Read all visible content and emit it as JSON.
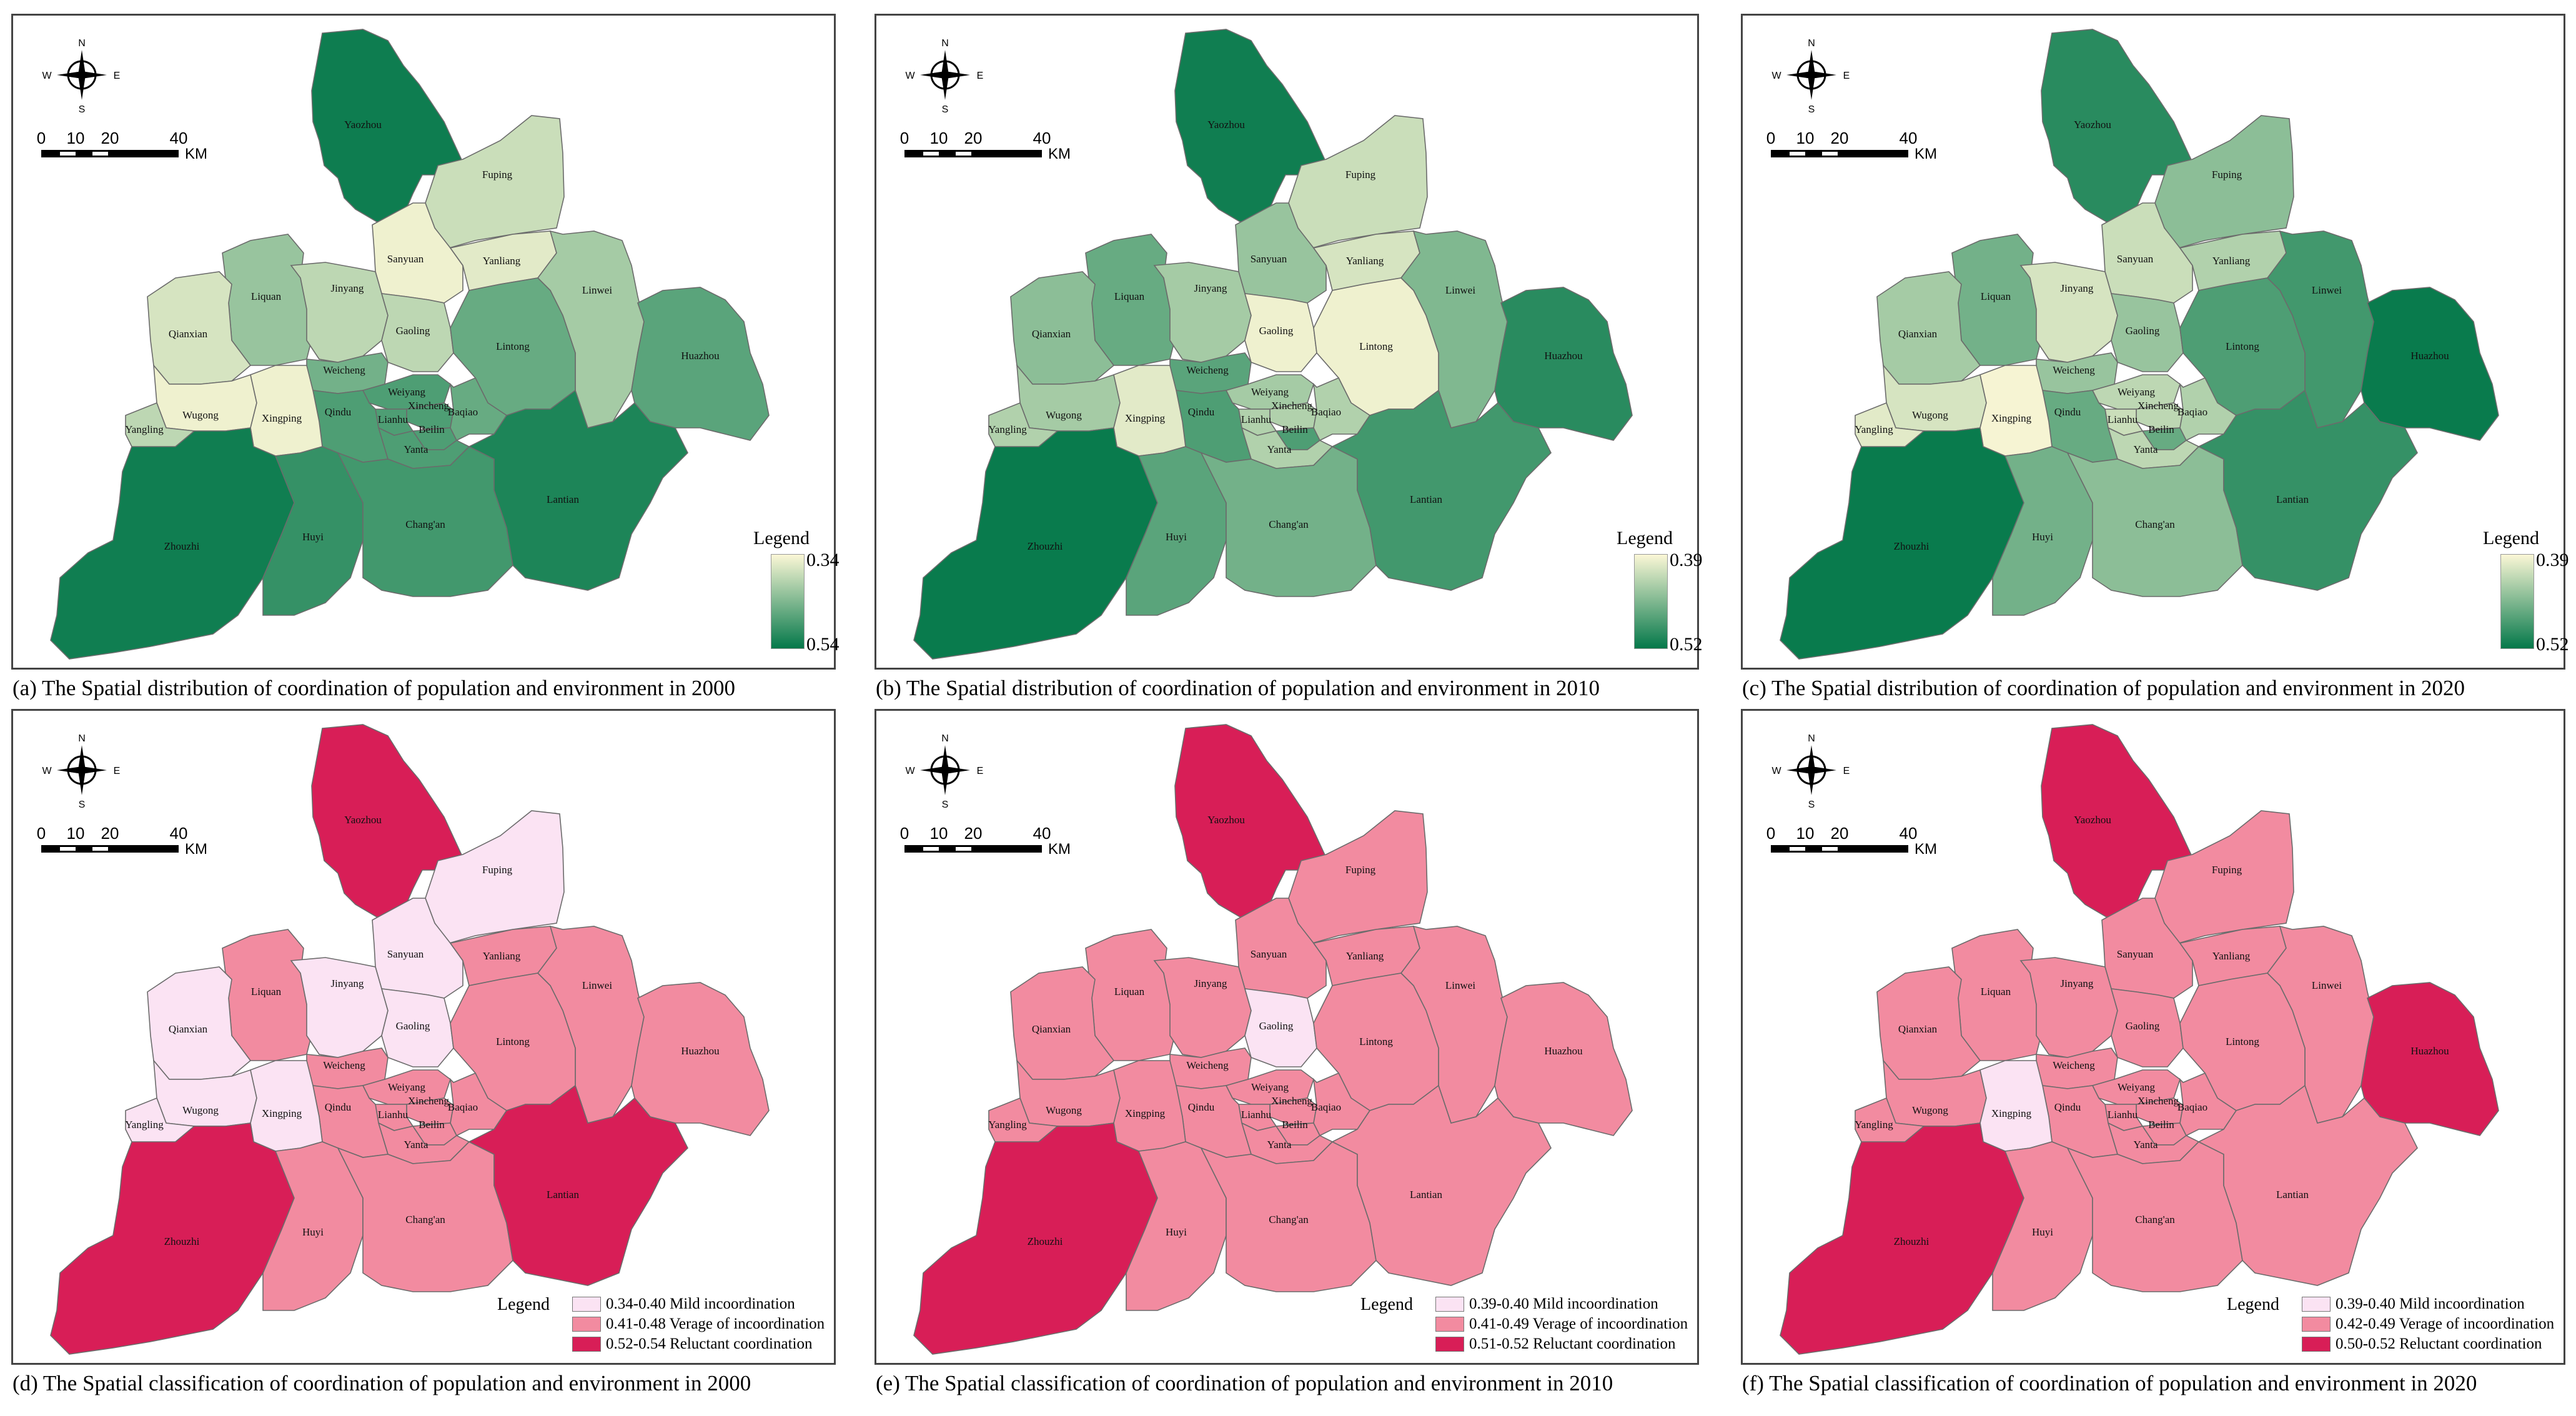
{
  "colors": {
    "pop_low": "#fbf7d6",
    "pop_high": "#04784a",
    "cls_mild": "#fbe3f3",
    "cls_average": "#f28ba0",
    "cls_reluctant": "#d81e57"
  },
  "compass": {
    "n": "N",
    "s": "S",
    "e": "E",
    "w": "W"
  },
  "scalebar": {
    "ticks": [
      "0",
      "10",
      "20",
      "40"
    ],
    "unit": "KM"
  },
  "legend_title": "Legend",
  "districts": [
    "Yaozhou",
    "Fuping",
    "Sanyuan",
    "Yanliang",
    "Liquan",
    "Jinyang",
    "Gaoling",
    "Linwei",
    "Qianxian",
    "Lintong",
    "Huazhou",
    "Weicheng",
    "Weiyang",
    "Xincheng",
    "Lianhu",
    "Beilin",
    "Baqiao",
    "Yanta",
    "Qindu",
    "Wugong",
    "Xingping",
    "Yangling",
    "Zhouzhi",
    "Huyi",
    "Chang'an",
    "Lantian"
  ],
  "panels": [
    {
      "caption": "(a) The Spatial distribution of coordination of population and environment in 2000",
      "type": "gradient",
      "legend_min": "0.34",
      "legend_max": "0.54",
      "levels": {
        "Yaozhou": 0.96,
        "Fuping": 0.2,
        "Sanyuan": 0.05,
        "Yanliang": 0.1,
        "Liquan": 0.4,
        "Jinyang": 0.25,
        "Gaoling": 0.25,
        "Linwei": 0.35,
        "Qianxian": 0.15,
        "Lintong": 0.6,
        "Huazhou": 0.65,
        "Weicheng": 0.55,
        "Weiyang": 0.7,
        "Xincheng": 0.7,
        "Lianhu": 0.7,
        "Beilin": 0.7,
        "Baqiao": 0.6,
        "Yanta": 0.7,
        "Qindu": 0.7,
        "Wugong": 0.05,
        "Xingping": 0.05,
        "Yangling": 0.25,
        "Zhouzhi": 0.95,
        "Huyi": 0.8,
        "Chang'an": 0.75,
        "Lantian": 0.9
      }
    },
    {
      "caption": "(b) The Spatial distribution of coordination of population and environment in 2010",
      "type": "gradient",
      "legend_min": "0.39",
      "legend_max": "0.52",
      "levels": {
        "Yaozhou": 0.95,
        "Fuping": 0.2,
        "Sanyuan": 0.4,
        "Yanliang": 0.15,
        "Liquan": 0.6,
        "Jinyang": 0.35,
        "Gaoling": 0.05,
        "Linwei": 0.5,
        "Qianxian": 0.45,
        "Lintong": 0.05,
        "Huazhou": 0.85,
        "Weicheng": 0.65,
        "Weiyang": 0.35,
        "Xincheng": 0.3,
        "Lianhu": 0.3,
        "Beilin": 0.7,
        "Baqiao": 0.3,
        "Yanta": 0.3,
        "Qindu": 0.7,
        "Wugong": 0.35,
        "Xingping": 0.1,
        "Yangling": 0.3,
        "Zhouzhi": 0.98,
        "Huyi": 0.65,
        "Chang'an": 0.55,
        "Lantian": 0.75
      }
    },
    {
      "caption": "(c) The Spatial distribution of coordination of population and environment in 2020",
      "type": "gradient",
      "legend_min": "0.39",
      "legend_max": "0.52",
      "levels": {
        "Yaozhou": 0.85,
        "Fuping": 0.45,
        "Sanyuan": 0.2,
        "Yanliang": 0.3,
        "Liquan": 0.55,
        "Jinyang": 0.15,
        "Gaoling": 0.4,
        "Linwei": 0.75,
        "Qianxian": 0.35,
        "Lintong": 0.7,
        "Huazhou": 0.98,
        "Weicheng": 0.4,
        "Weiyang": 0.25,
        "Xincheng": 0.25,
        "Lianhu": 0.2,
        "Beilin": 0.6,
        "Baqiao": 0.3,
        "Yanta": 0.25,
        "Qindu": 0.6,
        "Wugong": 0.15,
        "Xingping": 0.02,
        "Yangling": 0.1,
        "Zhouzhi": 0.98,
        "Huyi": 0.55,
        "Chang'an": 0.45,
        "Lantian": 0.8
      }
    },
    {
      "caption": "(d) The Spatial classification of coordination of population and environment in 2000",
      "type": "class",
      "classes": [
        "0.34-0.40 Mild incoordination",
        "0.41-0.48 Verage of incoordination",
        "0.52-0.54 Reluctant coordination"
      ],
      "levels": {
        "Yaozhou": 2,
        "Fuping": 0,
        "Sanyuan": 0,
        "Yanliang": 1,
        "Liquan": 1,
        "Jinyang": 0,
        "Gaoling": 0,
        "Linwei": 1,
        "Qianxian": 0,
        "Lintong": 1,
        "Huazhou": 1,
        "Weicheng": 1,
        "Weiyang": 1,
        "Xincheng": 1,
        "Lianhu": 1,
        "Beilin": 1,
        "Baqiao": 1,
        "Yanta": 1,
        "Qindu": 1,
        "Wugong": 0,
        "Xingping": 0,
        "Yangling": 0,
        "Zhouzhi": 2,
        "Huyi": 1,
        "Chang'an": 1,
        "Lantian": 2
      }
    },
    {
      "caption": "(e) The Spatial classification of coordination of population and environment in 2010",
      "type": "class",
      "classes": [
        "0.39-0.40 Mild incoordination",
        "0.41-0.49 Verage of incoordination",
        "0.51-0.52 Reluctant coordination"
      ],
      "levels": {
        "Yaozhou": 2,
        "Fuping": 1,
        "Sanyuan": 1,
        "Yanliang": 1,
        "Liquan": 1,
        "Jinyang": 1,
        "Gaoling": 0,
        "Linwei": 1,
        "Qianxian": 1,
        "Lintong": 1,
        "Huazhou": 1,
        "Weicheng": 1,
        "Weiyang": 1,
        "Xincheng": 1,
        "Lianhu": 1,
        "Beilin": 1,
        "Baqiao": 1,
        "Yanta": 1,
        "Qindu": 1,
        "Wugong": 1,
        "Xingping": 1,
        "Yangling": 1,
        "Zhouzhi": 2,
        "Huyi": 1,
        "Chang'an": 1,
        "Lantian": 1
      }
    },
    {
      "caption": "(f) The Spatial classification of coordination of population and environment in 2020",
      "type": "class",
      "classes": [
        "0.39-0.40 Mild incoordination",
        "0.42-0.49 Verage of incoordination",
        "0.50-0.52 Reluctant coordination"
      ],
      "levels": {
        "Yaozhou": 2,
        "Fuping": 1,
        "Sanyuan": 1,
        "Yanliang": 1,
        "Liquan": 1,
        "Jinyang": 1,
        "Gaoling": 1,
        "Linwei": 1,
        "Qianxian": 1,
        "Lintong": 1,
        "Huazhou": 2,
        "Weicheng": 1,
        "Weiyang": 1,
        "Xincheng": 1,
        "Lianhu": 1,
        "Beilin": 1,
        "Baqiao": 1,
        "Yanta": 1,
        "Qindu": 1,
        "Wugong": 1,
        "Xingping": 0,
        "Yangling": 1,
        "Zhouzhi": 2,
        "Huyi": 1,
        "Chang'an": 1,
        "Lantian": 1
      }
    }
  ]
}
